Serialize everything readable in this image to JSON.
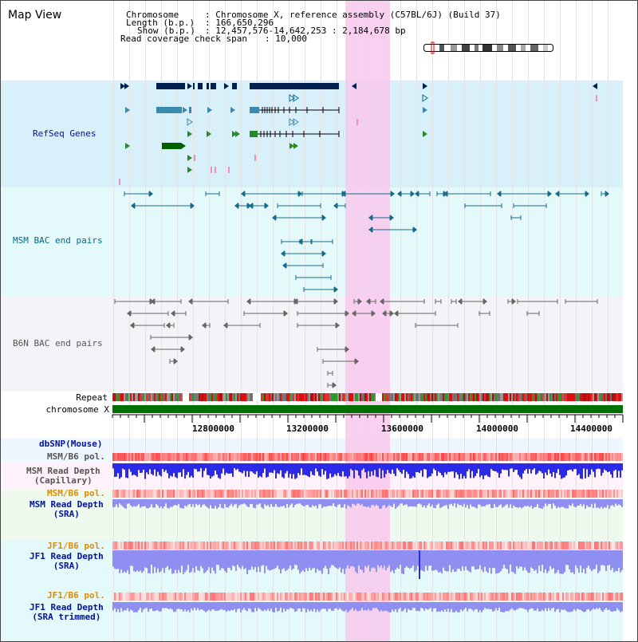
{
  "title": "Map View",
  "header": {
    "chromosome_key": "Chromosome",
    "chromosome_val": ": Chromosome X, reference assembly (C57BL/6J) (Build 37)",
    "length_key": "Length (b.p.)",
    "length_val": ": 166,650,296",
    "show_key": "Show (b.p.)",
    "show_val": ": 12,457,576-14,642,253 : 2,184,678 bp",
    "coverage_key": "Read coverage check span",
    "coverage_val": ": 10,000"
  },
  "tracks": {
    "refseq": "RefSeq Genes",
    "msm_bac": "MSM BAC end pairs",
    "b6n_bac": "B6N BAC end pairs",
    "repeat": "Repeat",
    "chromosome": "chromosome X",
    "dbsnp": "dbSNP(Mouse)",
    "msm_b6_pol_1": "MSM/B6 pol.",
    "msm_depth_cap": "MSM Read Depth\n(Capillary)",
    "msm_b6_pol_2": "MSM/B6 pol.",
    "msm_depth_sra": "MSM Read Depth\n(SRA)",
    "jf1_b6_pol_1": "JF1/B6 pol.",
    "jf1_depth_sra": "JF1 Read Depth\n(SRA)",
    "jf1_b6_pol_2": "JF1/B6 pol.",
    "jf1_depth_trim": "JF1 Read Depth\n(SRA trimmed)"
  },
  "axis_ticks": [
    "12800000",
    "13200000",
    "13600000",
    "14000000",
    "14400000"
  ],
  "colors": {
    "refseq_bg": "#d8f0fa",
    "msm_bg": "#e4fafa",
    "b6n_bg": "#f4f4f8",
    "sra_bg": "#eefaee",
    "cap_bg": "#fff2fb",
    "highlight": "#f8c8ec",
    "depth": "#2a2ae8",
    "depth_light": "#8f8ff2",
    "chrom": "#007000",
    "gene_dark": "#002050",
    "gene_mid": "#3a8ab0",
    "gene_green": "#006000",
    "bac_line": "#1a6a8a"
  }
}
